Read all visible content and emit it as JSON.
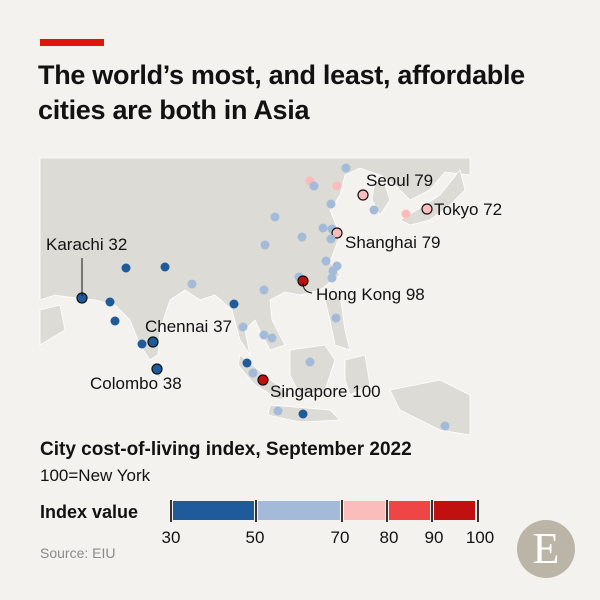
{
  "title": "The world’s most, and least, affordable cities are both in Asia",
  "colors": {
    "accent": "#e3120b",
    "bin_30_50": "#1f5a9a",
    "bin_50_70": "#a3bbd9",
    "bin_70_80": "#fbbcbc",
    "bin_80_90": "#f04545",
    "bin_90_100": "#c0100f"
  },
  "labeled_cities": [
    {
      "name": "Seoul",
      "value": "79"
    },
    {
      "name": "Tokyo",
      "value": "72"
    },
    {
      "name": "Shanghai",
      "value": "79"
    },
    {
      "name": "Hong Kong",
      "value": "98"
    },
    {
      "name": "Karachi",
      "value": "32"
    },
    {
      "name": "Chennai",
      "value": "37"
    },
    {
      "name": "Colombo",
      "value": "38"
    },
    {
      "name": "Singapore",
      "value": "100"
    }
  ],
  "subtitle": "City cost-of-living index, September 2022",
  "subtitle_note": "100=New York",
  "legend": {
    "label": "Index value",
    "ticks": [
      "30",
      "50",
      "70",
      "80",
      "90",
      "100"
    ]
  },
  "source": "Source: EIU",
  "logo_letter": "E"
}
